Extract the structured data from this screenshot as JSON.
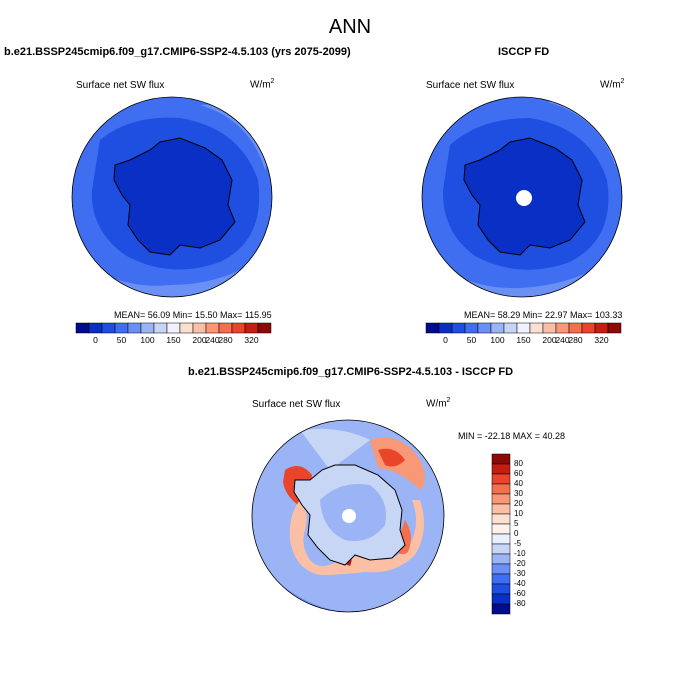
{
  "main_title": "ANN",
  "panels": [
    {
      "title": "b.e21.BSSP245cmip6.f09_g17.CMIP6-SSP2-4.5.103 (yrs 2075-2099)",
      "variable": "Surface net SW flux",
      "units_base": "W/m",
      "units_exp": "2",
      "stats": "MEAN=  56.09  Min=  15.50  Max= 115.95"
    },
    {
      "title": "ISCCP FD",
      "variable": "Surface net SW flux",
      "units_base": "W/m",
      "units_exp": "2",
      "stats": "MEAN=  58.29  Min=  22.97  Max= 103.33"
    },
    {
      "title": "b.e21.BSSP245cmip6.f09_g17.CMIP6-SSP2-4.5.103 - ISCCP FD",
      "variable": "Surface net SW flux",
      "units_base": "W/m",
      "units_exp": "2",
      "stats": "MIN = -22.18 MAX =  40.28"
    }
  ],
  "colorbar_main": {
    "ticks": [
      "0",
      "50",
      "100",
      "150",
      "200",
      "240",
      "280",
      "320"
    ],
    "colors": [
      "#000c8c",
      "#0a2fc4",
      "#1e4fe0",
      "#3f6ff0",
      "#6a90f5",
      "#9ab4f5",
      "#c8d6f5",
      "#f0f0ff",
      "#fbe0d0",
      "#fbbfa5",
      "#f99877",
      "#f36f4e",
      "#e8452b",
      "#c41d12",
      "#8c0a05"
    ]
  },
  "colorbar_diff": {
    "ticks": [
      "80",
      "60",
      "40",
      "30",
      "20",
      "10",
      "5",
      "0",
      "-5",
      "-10",
      "-20",
      "-30",
      "-40",
      "-60",
      "-80"
    ],
    "colors": [
      "#8c0a05",
      "#c41d12",
      "#e8452b",
      "#f36f4e",
      "#f99877",
      "#fbbfa5",
      "#fbe0d0",
      "#fdf1ea",
      "#eaf0ff",
      "#c8d6f5",
      "#9ab4f5",
      "#6a90f5",
      "#3f6ff0",
      "#1e4fe0",
      "#0a2fc4",
      "#000c8c"
    ]
  }
}
